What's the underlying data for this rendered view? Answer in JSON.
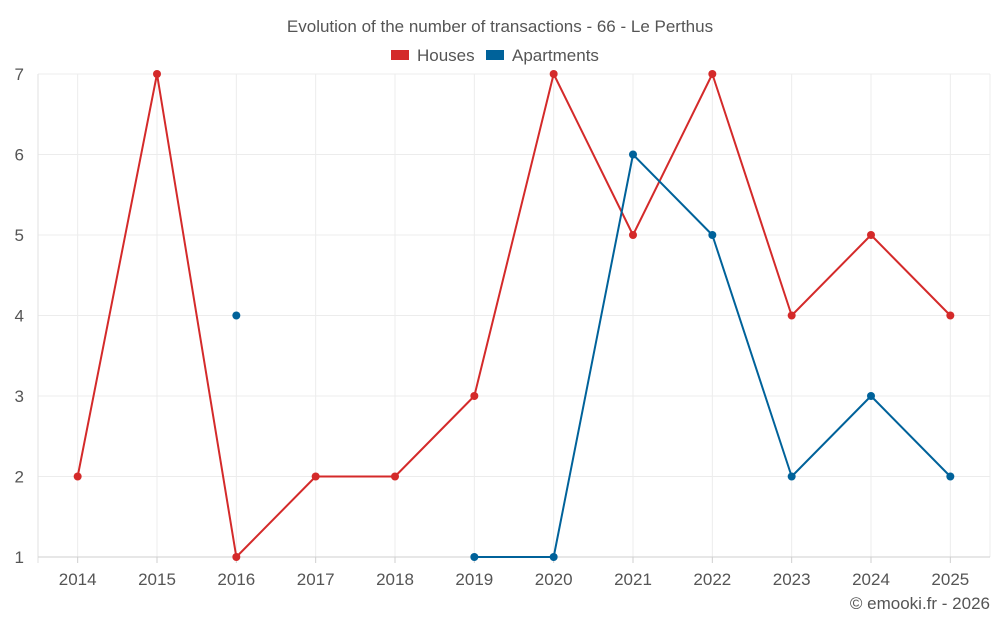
{
  "chart_data": {
    "type": "line",
    "title": "Evolution of the number of transactions - 66 - Le Perthus",
    "xlabel": "",
    "ylabel": "",
    "categories": [
      "2014",
      "2015",
      "2016",
      "2017",
      "2018",
      "2019",
      "2020",
      "2021",
      "2022",
      "2023",
      "2024",
      "2025"
    ],
    "ylim": [
      1,
      7
    ],
    "yticks": [
      1,
      2,
      3,
      4,
      5,
      6,
      7
    ],
    "grid": true,
    "legend_position": "top-center",
    "series": [
      {
        "name": "Houses",
        "color": "#d42a2a",
        "values": [
          2,
          7,
          1,
          2,
          2,
          3,
          7,
          5,
          7,
          4,
          5,
          4
        ]
      },
      {
        "name": "Apartments",
        "color": "#00629a",
        "values": [
          null,
          null,
          4,
          null,
          null,
          1,
          1,
          6,
          5,
          2,
          3,
          2
        ]
      }
    ]
  },
  "credit": "© emooki.fr - 2026"
}
